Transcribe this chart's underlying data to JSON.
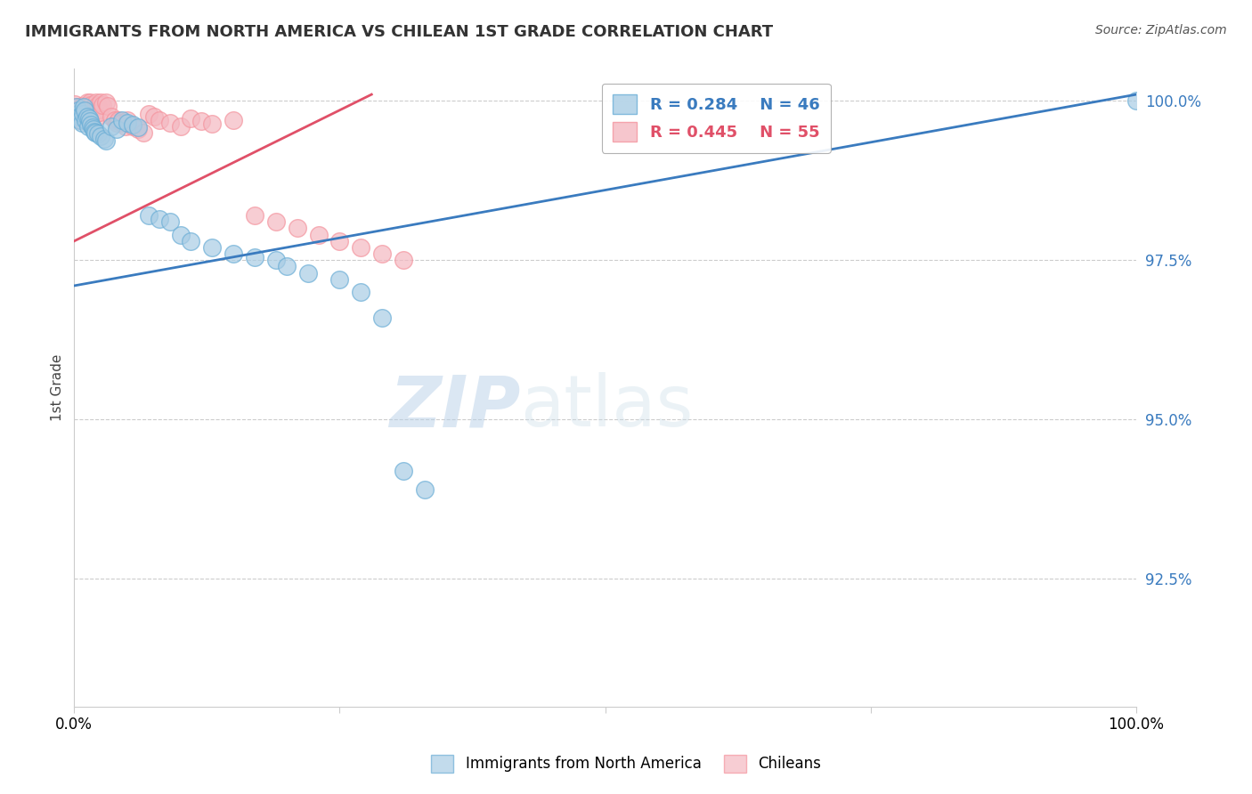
{
  "title": "IMMIGRANTS FROM NORTH AMERICA VS CHILEAN 1ST GRADE CORRELATION CHART",
  "source_text": "Source: ZipAtlas.com",
  "ylabel": "1st Grade",
  "xlim": [
    0.0,
    1.0
  ],
  "ylim": [
    0.905,
    1.005
  ],
  "yticks": [
    0.925,
    0.95,
    0.975,
    1.0
  ],
  "ytick_labels": [
    "92.5%",
    "95.0%",
    "97.5%",
    "100.0%"
  ],
  "xticks": [
    0.0,
    0.25,
    0.5,
    0.75,
    1.0
  ],
  "xtick_labels": [
    "0.0%",
    "",
    "",
    "",
    "100.0%"
  ],
  "legend_blue_label": "Immigrants from North America",
  "legend_pink_label": "Chileans",
  "blue_R": 0.284,
  "blue_N": 46,
  "pink_R": 0.445,
  "pink_N": 55,
  "blue_color": "#a8cce4",
  "pink_color": "#f4b8c1",
  "blue_edge_color": "#6baed6",
  "pink_edge_color": "#f4949e",
  "blue_line_color": "#3a7bbf",
  "pink_line_color": "#e05068",
  "watermark_zip": "ZIP",
  "watermark_atlas": "atlas",
  "blue_x": [
    0.002,
    0.003,
    0.004,
    0.005,
    0.006,
    0.007,
    0.008,
    0.009,
    0.01,
    0.011,
    0.012,
    0.013,
    0.014,
    0.015,
    0.016,
    0.017,
    0.018,
    0.019,
    0.02,
    0.022,
    0.025,
    0.028,
    0.03,
    0.035,
    0.04,
    0.045,
    0.05,
    0.055,
    0.06,
    0.07,
    0.08,
    0.09,
    0.1,
    0.11,
    0.13,
    0.15,
    0.17,
    0.19,
    0.2,
    0.22,
    0.25,
    0.27,
    0.29,
    0.31,
    0.33,
    1.0
  ],
  "blue_y": [
    0.999,
    0.998,
    0.9985,
    0.9975,
    0.997,
    0.9965,
    0.998,
    0.999,
    0.9985,
    0.997,
    0.9975,
    0.996,
    0.9972,
    0.9968,
    0.9962,
    0.9958,
    0.9955,
    0.9952,
    0.995,
    0.9948,
    0.9945,
    0.994,
    0.9938,
    0.996,
    0.9955,
    0.997,
    0.9965,
    0.9962,
    0.9958,
    0.982,
    0.9815,
    0.981,
    0.979,
    0.978,
    0.977,
    0.976,
    0.9755,
    0.975,
    0.974,
    0.973,
    0.972,
    0.97,
    0.966,
    0.942,
    0.939,
    1.0
  ],
  "pink_x": [
    0.001,
    0.002,
    0.003,
    0.004,
    0.005,
    0.006,
    0.007,
    0.008,
    0.009,
    0.01,
    0.011,
    0.012,
    0.013,
    0.014,
    0.015,
    0.016,
    0.017,
    0.018,
    0.019,
    0.02,
    0.021,
    0.022,
    0.023,
    0.024,
    0.025,
    0.027,
    0.03,
    0.032,
    0.035,
    0.038,
    0.04,
    0.042,
    0.045,
    0.048,
    0.05,
    0.055,
    0.06,
    0.065,
    0.07,
    0.075,
    0.08,
    0.09,
    0.1,
    0.11,
    0.12,
    0.13,
    0.15,
    0.17,
    0.19,
    0.21,
    0.23,
    0.25,
    0.27,
    0.29,
    0.31
  ],
  "pink_y": [
    0.9995,
    0.999,
    0.9985,
    0.998,
    0.9975,
    0.997,
    0.9992,
    0.9988,
    0.9982,
    0.9978,
    0.9973,
    0.9998,
    0.9993,
    0.9988,
    0.9998,
    0.9993,
    0.9988,
    0.9983,
    0.9978,
    0.9972,
    0.9998,
    0.9993,
    0.9987,
    0.9982,
    0.9998,
    0.9993,
    0.9998,
    0.9992,
    0.9975,
    0.997,
    0.9965,
    0.997,
    0.9965,
    0.996,
    0.997,
    0.996,
    0.9955,
    0.995,
    0.998,
    0.9975,
    0.997,
    0.9965,
    0.996,
    0.9972,
    0.9968,
    0.9964,
    0.997,
    0.982,
    0.981,
    0.98,
    0.979,
    0.978,
    0.977,
    0.976,
    0.975
  ]
}
